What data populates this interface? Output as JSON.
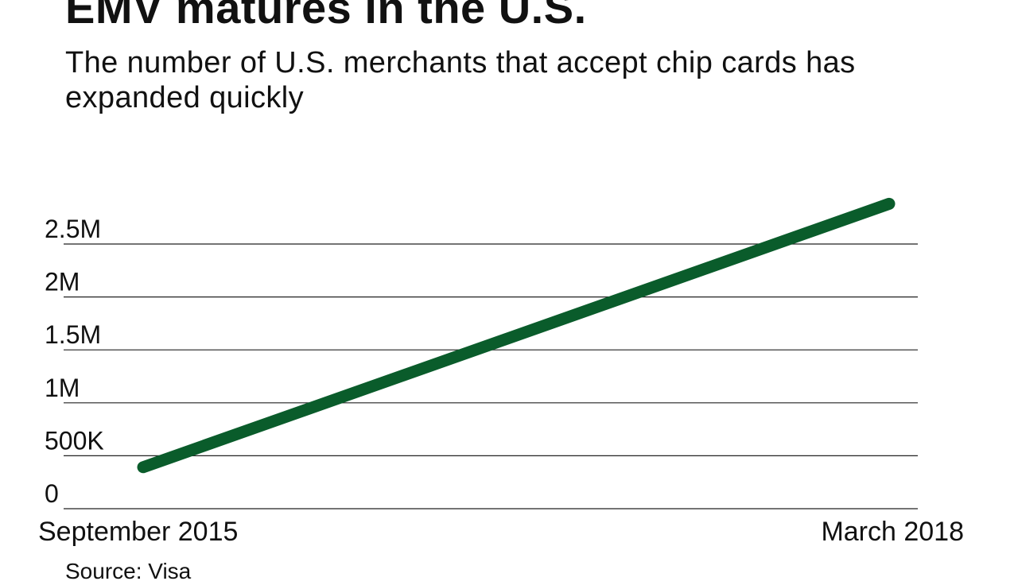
{
  "title": "EMV matures in the U.S.",
  "subtitle": "The number of U.S. merchants that accept chip cards has expanded quickly",
  "source": "Source: Visa",
  "colors": {
    "line": "#0a5c2b",
    "gridline": "#222222",
    "text": "#111111"
  },
  "chart_data": {
    "type": "line",
    "title": "EMV matures in the U.S.",
    "subtitle": "The number of U.S. merchants that accept chip cards has expanded quickly",
    "categories": [
      "September 2015",
      "March 2018"
    ],
    "series": [
      {
        "values": [
          392000,
          2880000
        ]
      }
    ],
    "x_tick_labels": [
      "September 2015",
      "March 2018"
    ],
    "y_ticks": [
      0,
      500000,
      1000000,
      1500000,
      2000000,
      2500000
    ],
    "y_tick_labels": [
      "0",
      "500K",
      "1M",
      "1.5M",
      "2M",
      "2.5M"
    ],
    "ylim": [
      0,
      2500000
    ],
    "grid": "horizontal",
    "legend": "none",
    "source": "Source: Visa"
  }
}
